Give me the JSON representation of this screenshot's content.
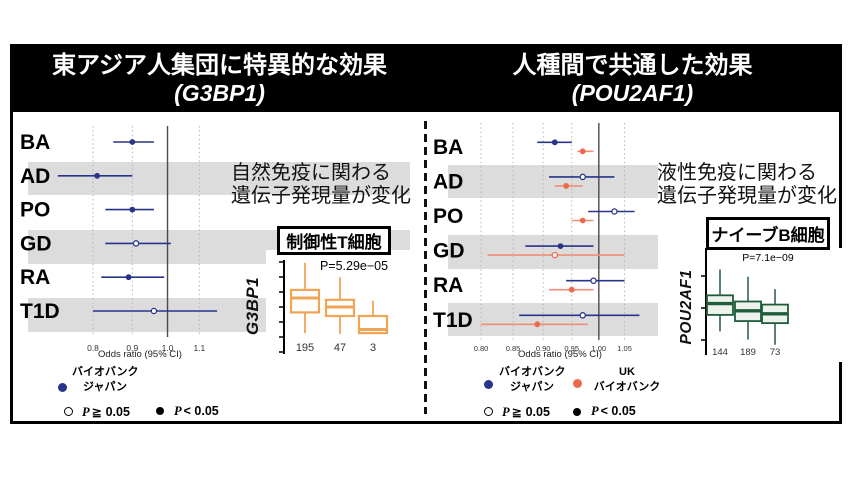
{
  "figure": {
    "left_panel": {
      "title": "東アジア人集団に特異的な効果",
      "gene": "(G3BP1)",
      "annotation_line1": "自然免疫に関わる",
      "annotation_line2": "遺伝子発現量が変化",
      "cell_type": "制御性T細胞",
      "gene_axis_label": "G3BP1"
    },
    "right_panel": {
      "title": "人種間で共通した効果",
      "gene": "(POU2AF1)",
      "annotation_line1": "液性免疫に関わる",
      "annotation_line2": "遺伝子発現量が変化",
      "cell_type": "ナイーブB細胞",
      "gene_axis_label": "POU2AF1"
    },
    "legend_left": {
      "series1_line1": "バイオバンク",
      "series1_line2": "ジャパン",
      "p_symbol": "P",
      "p_ge": "≧ 0.05",
      "p_lt": "< 0.05"
    },
    "legend_right": {
      "series1_line1": "バイオバンク",
      "series1_line2": "ジャパン",
      "series2_line1": "UK",
      "series2_line2": "バイオバンク",
      "p_symbol": "P",
      "p_ge": "≧ 0.05",
      "p_lt": "< 0.05"
    },
    "colors": {
      "bbj_blue": "#28348a",
      "ukb_orange_dot": "#ec6a4c",
      "ukb_orange_line": "#f08f77",
      "box_orange": "#f0a455",
      "box_green": "#1e5c3a",
      "stripe_gray": "#dcdcdc"
    }
  },
  "chart_data": [
    {
      "id": "forest_left",
      "type": "scatter",
      "subtype": "forest-plot",
      "title": "東アジア人集団に特異的な効果 (G3BP1)",
      "categories": [
        "BA",
        "AD",
        "PO",
        "GD",
        "RA",
        "T1D"
      ],
      "xlabel": "Odds ratio (95% CI)",
      "xscale": "log",
      "xticks": [
        0.8,
        0.9,
        1.0,
        1.1
      ],
      "xtick_labels": [
        "0.8",
        "0.9",
        "1.0",
        "1.1"
      ],
      "refline": 1.0,
      "legend_note": "filled = P < 0.05, open = P ≧ 0.05",
      "series": [
        {
          "name": "バイオバンク ジャパン",
          "color": "#28348a",
          "line_color": "#28348a",
          "points": [
            {
              "category": "BA",
              "or": 0.9,
              "ci_low": 0.85,
              "ci_high": 0.96,
              "significant": true
            },
            {
              "category": "AD",
              "or": 0.81,
              "ci_low": 0.72,
              "ci_high": 0.9,
              "significant": true
            },
            {
              "category": "PO",
              "or": 0.9,
              "ci_low": 0.83,
              "ci_high": 0.96,
              "significant": true
            },
            {
              "category": "GD",
              "or": 0.91,
              "ci_low": 0.83,
              "ci_high": 1.01,
              "significant": false
            },
            {
              "category": "RA",
              "or": 0.89,
              "ci_low": 0.82,
              "ci_high": 0.99,
              "significant": true
            },
            {
              "category": "T1D",
              "or": 0.96,
              "ci_low": 0.8,
              "ci_high": 1.16,
              "significant": false
            }
          ]
        }
      ]
    },
    {
      "id": "forest_right",
      "type": "scatter",
      "subtype": "forest-plot",
      "title": "人種間で共通した効果 (POU2AF1)",
      "categories": [
        "BA",
        "AD",
        "PO",
        "GD",
        "RA",
        "T1D"
      ],
      "xlabel": "Odds ratio (95% CI)",
      "xscale": "log",
      "xticks": [
        0.8,
        0.85,
        0.9,
        0.95,
        1.0,
        1.05
      ],
      "xtick_labels": [
        "0.80",
        "0.85",
        "0.90",
        "0.95",
        "1.00",
        "1.05"
      ],
      "refline": 1.0,
      "legend_note": "filled = P < 0.05, open = P ≧ 0.05",
      "series": [
        {
          "name": "バイオバンク ジャパン",
          "color": "#28348a",
          "line_color": "#28348a",
          "points": [
            {
              "category": "BA",
              "or": 0.92,
              "ci_low": 0.89,
              "ci_high": 0.95,
              "significant": true
            },
            {
              "category": "AD",
              "or": 0.97,
              "ci_low": 0.91,
              "ci_high": 1.03,
              "significant": false
            },
            {
              "category": "PO",
              "or": 1.03,
              "ci_low": 0.98,
              "ci_high": 1.07,
              "significant": false
            },
            {
              "category": "GD",
              "or": 0.93,
              "ci_low": 0.87,
              "ci_high": 0.99,
              "significant": true
            },
            {
              "category": "RA",
              "or": 0.99,
              "ci_low": 0.94,
              "ci_high": 1.05,
              "significant": false
            },
            {
              "category": "T1D",
              "or": 0.97,
              "ci_low": 0.86,
              "ci_high": 1.08,
              "significant": false
            }
          ]
        },
        {
          "name": "UK バイオバンク",
          "color": "#ec6a4c",
          "line_color": "#f08f77",
          "points": [
            {
              "category": "BA",
              "or": 0.97,
              "ci_low": 0.96,
              "ci_high": 0.99,
              "significant": true
            },
            {
              "category": "AD",
              "or": 0.94,
              "ci_low": 0.92,
              "ci_high": 0.97,
              "significant": true
            },
            {
              "category": "PO",
              "or": 0.97,
              "ci_low": 0.95,
              "ci_high": 0.99,
              "significant": true
            },
            {
              "category": "GD",
              "or": 0.92,
              "ci_low": 0.81,
              "ci_high": 1.05,
              "significant": false
            },
            {
              "category": "RA",
              "or": 0.95,
              "ci_low": 0.91,
              "ci_high": 0.99,
              "significant": true
            },
            {
              "category": "T1D",
              "or": 0.89,
              "ci_low": 0.8,
              "ci_high": 0.98,
              "significant": true
            }
          ]
        }
      ]
    },
    {
      "id": "box_left",
      "type": "box",
      "title": "制御性T細胞",
      "ylabel": "G3BP1",
      "p_label": "P=5.29e−05",
      "color": "#f0a455",
      "value_units": "relative expression, arbitrary 0-100 scale (axis unlabeled)",
      "groups": [
        {
          "n": 195,
          "whisker_high": 99,
          "q3": 69,
          "median": 60,
          "q1": 44,
          "whisker_low": 21
        },
        {
          "n": 47,
          "whisker_high": 83,
          "q3": 58,
          "median": 50,
          "q1": 40,
          "whisker_low": 20
        },
        {
          "n": 3,
          "whisker_high": 57,
          "q3": 40,
          "median": 25,
          "q1": 21,
          "whisker_low": 21
        }
      ]
    },
    {
      "id": "box_right",
      "type": "box",
      "title": "ナイーブB細胞",
      "ylabel": "POU2AF1",
      "p_label": "P=7.1e−09",
      "color": "#1e5c3a",
      "value_units": "relative expression, arbitrary 0-100 scale (axis unlabeled)",
      "groups": [
        {
          "n": 144,
          "whisker_high": 81,
          "q3": 56,
          "median": 48,
          "q1": 37,
          "whisker_low": 21
        },
        {
          "n": 189,
          "whisker_high": 74,
          "q3": 50,
          "median": 41,
          "q1": 31,
          "whisker_low": 13
        },
        {
          "n": 73,
          "whisker_high": 62,
          "q3": 47,
          "median": 38,
          "q1": 29,
          "whisker_low": 8
        }
      ]
    }
  ]
}
